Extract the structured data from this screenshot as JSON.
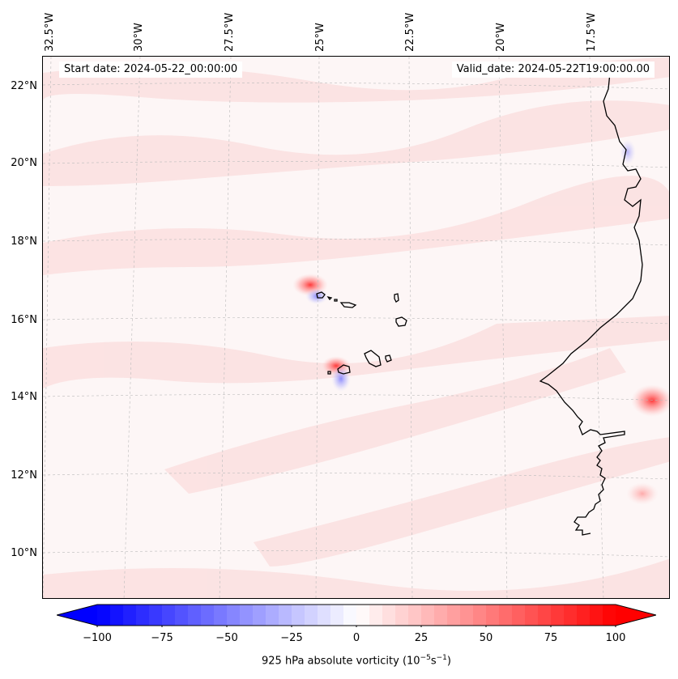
{
  "map": {
    "start_date": "Start date: 2024-05-22_00:00:00",
    "valid_date": "Valid_date: 2024-05-22T19:00:00.00",
    "lon_labels": [
      "32.5°W",
      "30°W",
      "27.5°W",
      "25°W",
      "22.5°W",
      "20°W",
      "17.5°W"
    ],
    "lat_labels": [
      "22°N",
      "20°N",
      "18°N",
      "16°N",
      "14°N",
      "12°N",
      "10°N"
    ],
    "features": {
      "islands": "Cape Verde Islands",
      "coast": "West African coastline"
    },
    "colors": {
      "background": "#fdf6f6",
      "positive": "#ff0000",
      "negative": "#0000ff",
      "coast": "#000000"
    }
  },
  "colorbar": {
    "min": -100,
    "max": 100,
    "ticks": [
      "−100",
      "−75",
      "−50",
      "−25",
      "0",
      "25",
      "50",
      "75",
      "100"
    ],
    "label": "925 hPa absolute vorticity (10",
    "label_exp1": "−5",
    "label_mid": "s",
    "label_exp2": "−1",
    "label_end": ")"
  }
}
